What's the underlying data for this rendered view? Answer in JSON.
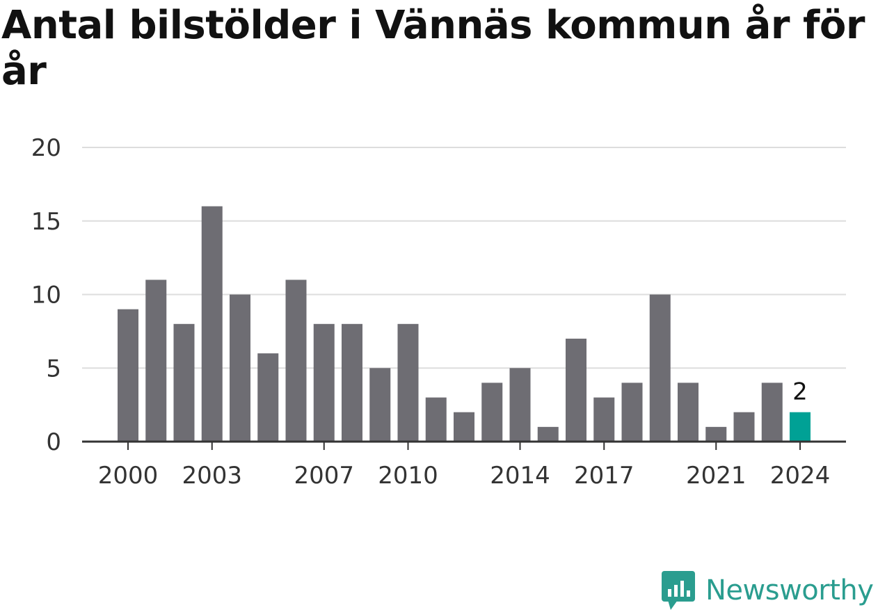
{
  "title": "Antal bilstölder i Vännäs kommun år för år",
  "brand": {
    "name": "Newsworthy",
    "icon": "bar-chart-speech-bubble-icon",
    "color": "#2a9d8f"
  },
  "colors": {
    "bar": "#6e6d73",
    "highlight": "#00a195",
    "grid": "#dddddd",
    "axis": "#333333"
  },
  "chart_data": {
    "type": "bar",
    "title": "Antal bilstölder i Vännäs kommun år för år",
    "xlabel": "",
    "ylabel": "",
    "categories": [
      2000,
      2001,
      2002,
      2003,
      2004,
      2005,
      2006,
      2007,
      2008,
      2009,
      2010,
      2011,
      2012,
      2013,
      2014,
      2015,
      2016,
      2017,
      2018,
      2019,
      2020,
      2021,
      2022,
      2023,
      2024
    ],
    "values": [
      9,
      11,
      8,
      16,
      10,
      6,
      11,
      8,
      8,
      5,
      8,
      3,
      2,
      4,
      5,
      1,
      7,
      3,
      4,
      10,
      4,
      1,
      2,
      4,
      2
    ],
    "ylim": [
      0,
      20
    ],
    "yticks": [
      0,
      5,
      10,
      15,
      20
    ],
    "xticks": [
      2000,
      2003,
      2007,
      2010,
      2014,
      2017,
      2021,
      2024
    ],
    "highlight": {
      "category": 2024,
      "label": "2"
    },
    "grid": true
  }
}
